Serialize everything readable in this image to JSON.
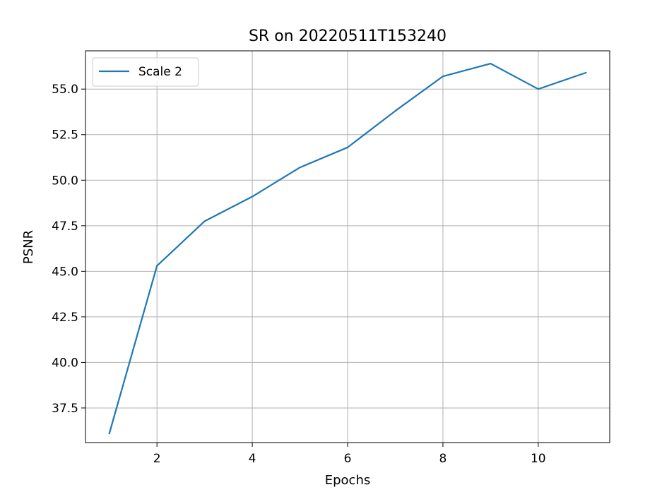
{
  "chart_data": {
    "type": "line",
    "title": "SR on 20220511T153240",
    "xlabel": "Epochs",
    "ylabel": "PSNR",
    "xlim": [
      0.5,
      11.5
    ],
    "ylim": [
      35.6,
      57.1
    ],
    "xticks": [
      2,
      4,
      6,
      8,
      10
    ],
    "xtick_labels": [
      "2",
      "4",
      "6",
      "8",
      "10"
    ],
    "yticks": [
      37.5,
      40.0,
      42.5,
      45.0,
      47.5,
      50.0,
      52.5,
      55.0
    ],
    "ytick_labels": [
      "37.5",
      "40.0",
      "42.5",
      "45.0",
      "47.5",
      "50.0",
      "52.5",
      "55.0"
    ],
    "grid": true,
    "legend_position": "upper-left",
    "series": [
      {
        "name": "Scale 2",
        "color": "#1f77b4",
        "x": [
          1,
          2,
          3,
          4,
          5,
          6,
          7,
          8,
          9,
          10,
          11
        ],
        "y": [
          36.1,
          45.3,
          47.75,
          49.1,
          50.7,
          51.8,
          53.8,
          55.7,
          56.4,
          55.0,
          55.9
        ]
      }
    ]
  }
}
